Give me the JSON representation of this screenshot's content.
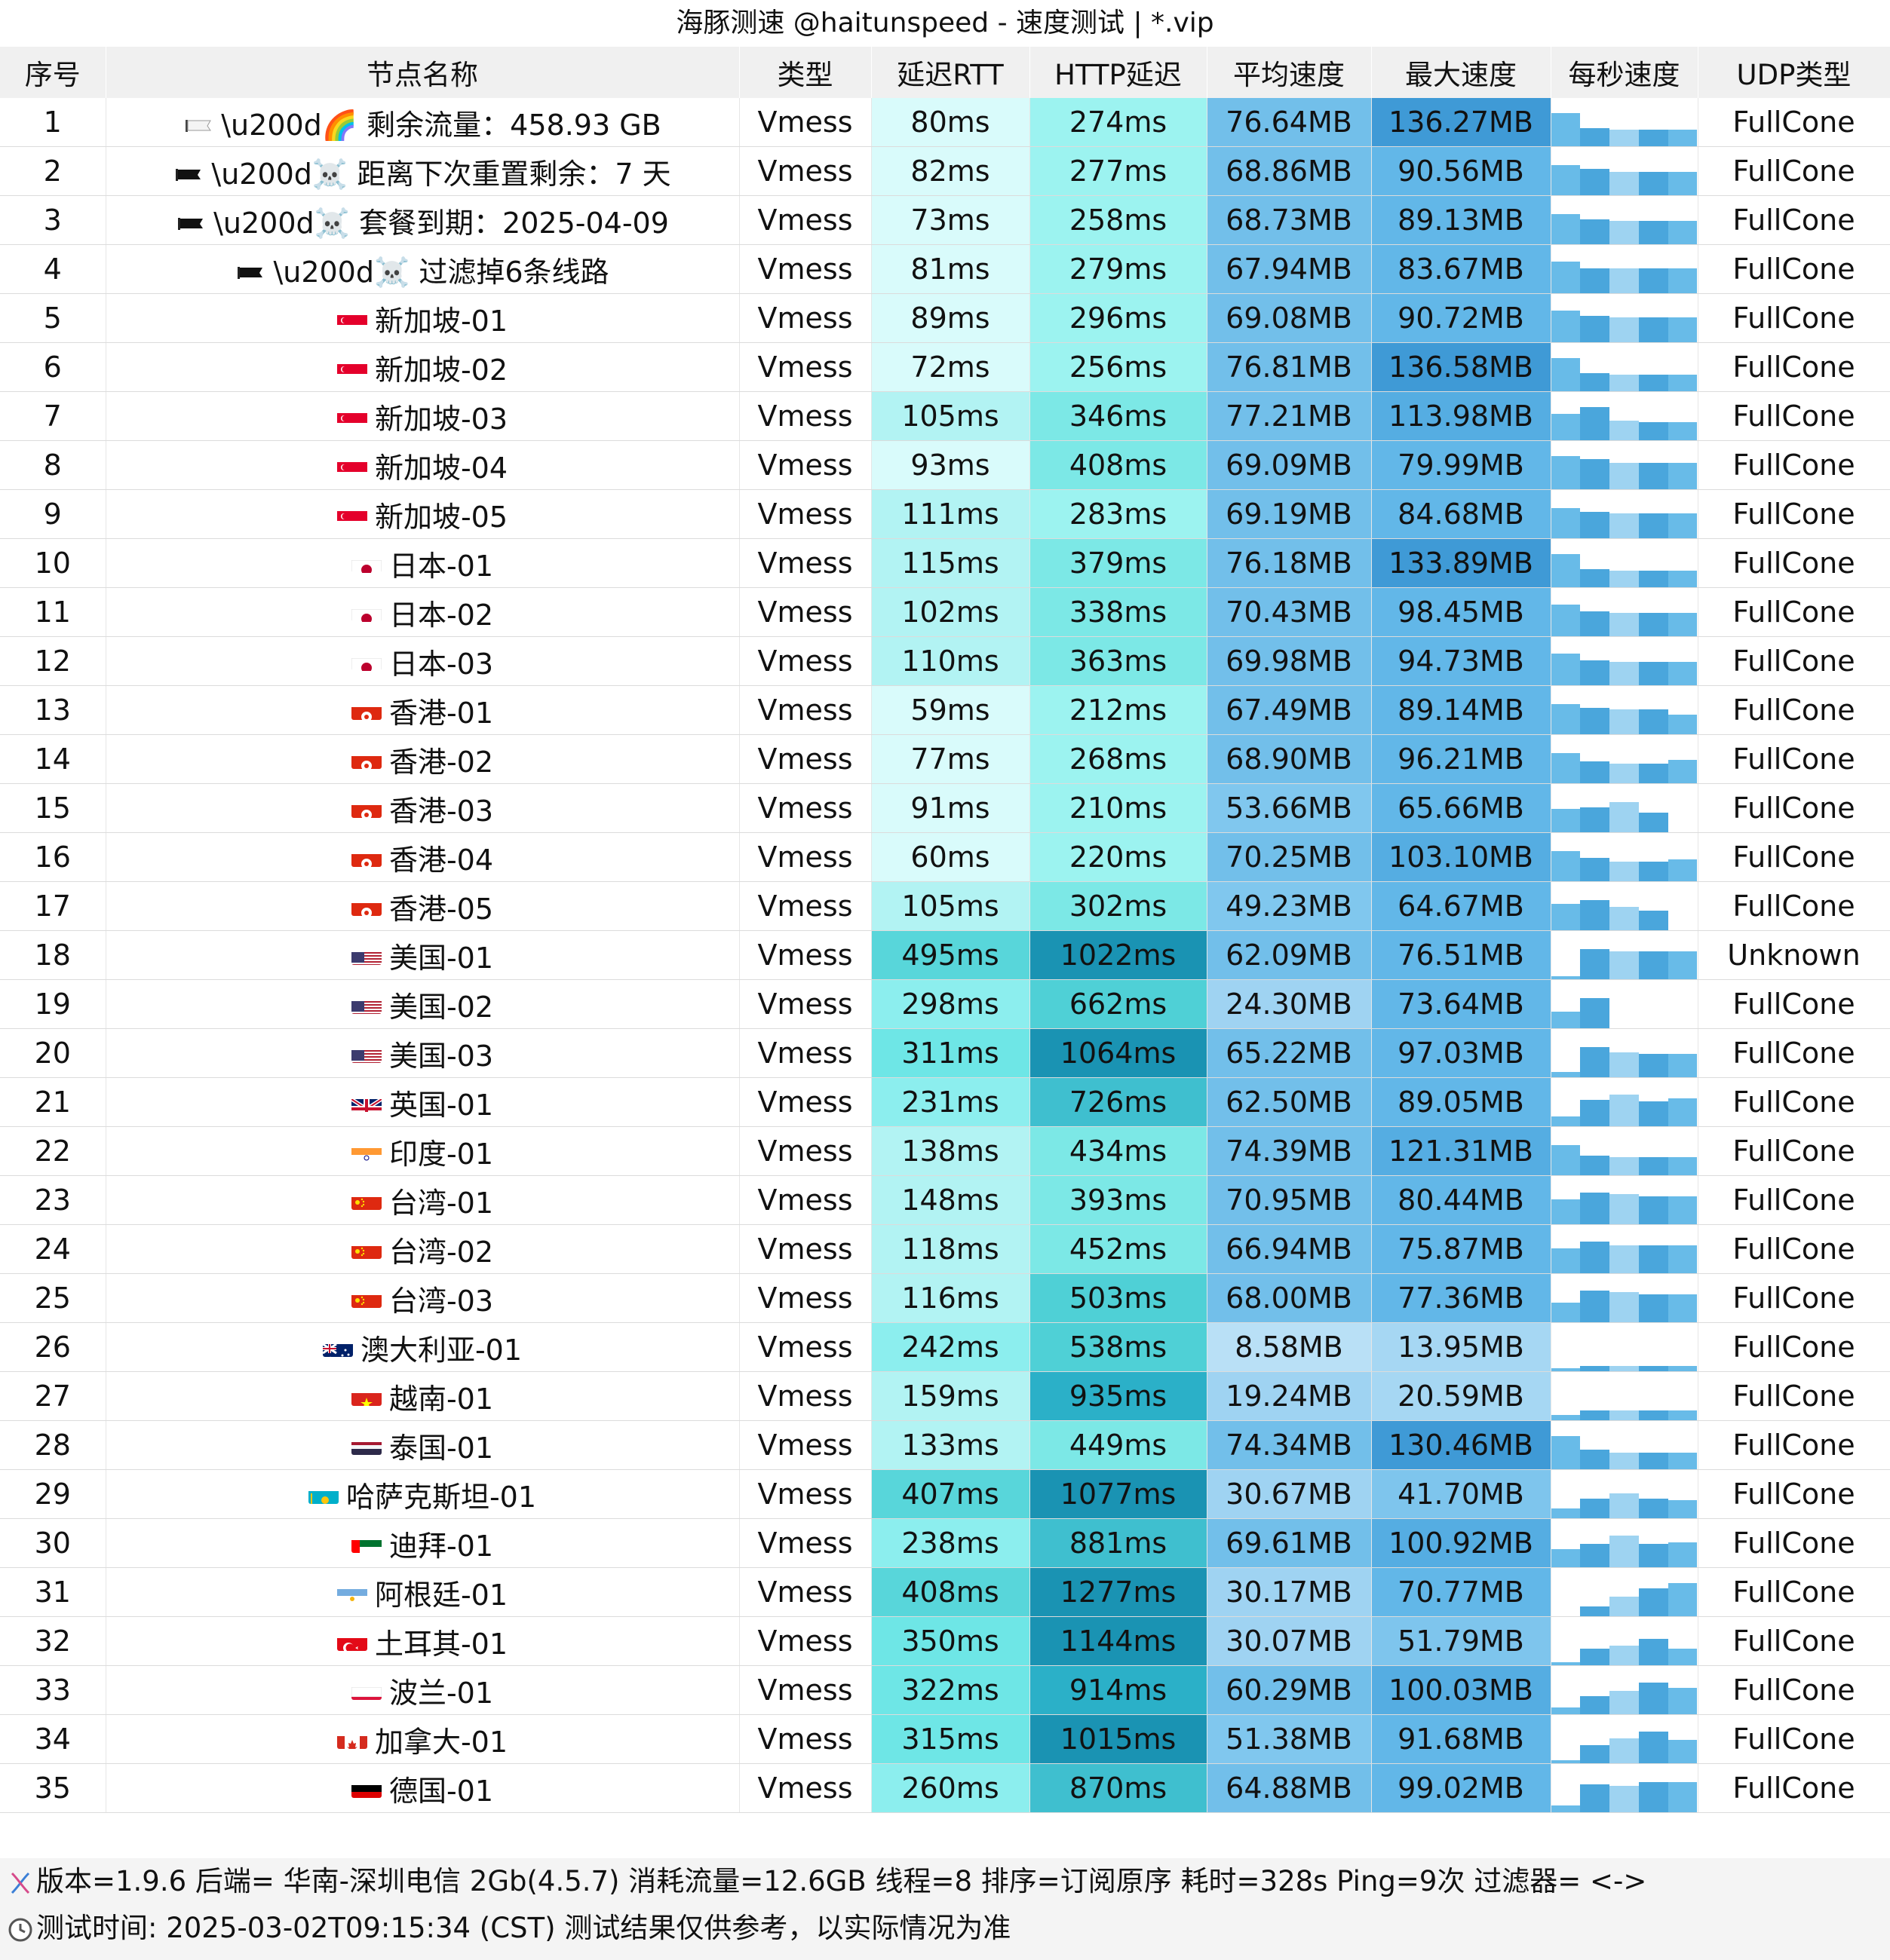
{
  "title": "海豚测速 @haitunspeed - 速度测试 | *.vip",
  "columns": [
    "序号",
    "节点名称",
    "类型",
    "延迟RTT",
    "HTTP延迟",
    "平均速度",
    "最大速度",
    "每秒速度",
    "UDP类型"
  ],
  "rows": [
    {
      "no": "1",
      "flag": "white-flag",
      "name": "\\u200d🌈 剩余流量：458.93 GB",
      "type": "Vmess",
      "rtt": "80ms",
      "http": "274ms",
      "avg": "76.64MB",
      "max": "136.27MB",
      "udp": "FullCone",
      "spark": [
        1.0,
        0.55,
        0.5,
        0.5,
        0.5
      ]
    },
    {
      "no": "2",
      "flag": "black-flag",
      "name": "\\u200d☠️ 距离下次重置剩余：7 天",
      "type": "Vmess",
      "rtt": "82ms",
      "http": "277ms",
      "avg": "68.86MB",
      "max": "90.56MB",
      "udp": "FullCone",
      "spark": [
        0.9,
        0.8,
        0.7,
        0.7,
        0.7
      ]
    },
    {
      "no": "3",
      "flag": "black-flag",
      "name": "\\u200d☠️ 套餐到期：2025-04-09",
      "type": "Vmess",
      "rtt": "73ms",
      "http": "258ms",
      "avg": "68.73MB",
      "max": "89.13MB",
      "udp": "FullCone",
      "spark": [
        0.9,
        0.75,
        0.7,
        0.7,
        0.7
      ]
    },
    {
      "no": "4",
      "flag": "black-flag",
      "name": "\\u200d☠️ 过滤掉6条线路",
      "type": "Vmess",
      "rtt": "81ms",
      "http": "279ms",
      "avg": "67.94MB",
      "max": "83.67MB",
      "udp": "FullCone",
      "spark": [
        0.95,
        0.75,
        0.75,
        0.75,
        0.75
      ]
    },
    {
      "no": "5",
      "flag": "sg",
      "name": "新加坡-01",
      "type": "Vmess",
      "rtt": "89ms",
      "http": "296ms",
      "avg": "69.08MB",
      "max": "90.72MB",
      "udp": "FullCone",
      "spark": [
        0.95,
        0.8,
        0.75,
        0.75,
        0.75
      ]
    },
    {
      "no": "6",
      "flag": "sg",
      "name": "新加坡-02",
      "type": "Vmess",
      "rtt": "72ms",
      "http": "256ms",
      "avg": "76.81MB",
      "max": "136.58MB",
      "udp": "FullCone",
      "spark": [
        1.0,
        0.55,
        0.5,
        0.5,
        0.5
      ]
    },
    {
      "no": "7",
      "flag": "sg",
      "name": "新加坡-03",
      "type": "Vmess",
      "rtt": "105ms",
      "http": "346ms",
      "avg": "77.21MB",
      "max": "113.98MB",
      "udp": "FullCone",
      "spark": [
        0.8,
        1.0,
        0.6,
        0.55,
        0.55
      ]
    },
    {
      "no": "8",
      "flag": "sg",
      "name": "新加坡-04",
      "type": "Vmess",
      "rtt": "93ms",
      "http": "408ms",
      "avg": "69.09MB",
      "max": "79.99MB",
      "udp": "FullCone",
      "spark": [
        1.0,
        0.9,
        0.8,
        0.8,
        0.8
      ]
    },
    {
      "no": "9",
      "flag": "sg",
      "name": "新加坡-05",
      "type": "Vmess",
      "rtt": "111ms",
      "http": "283ms",
      "avg": "69.19MB",
      "max": "84.68MB",
      "udp": "FullCone",
      "spark": [
        0.9,
        0.8,
        0.75,
        0.75,
        0.75
      ]
    },
    {
      "no": "10",
      "flag": "jp",
      "name": "日本-01",
      "type": "Vmess",
      "rtt": "115ms",
      "http": "379ms",
      "avg": "76.18MB",
      "max": "133.89MB",
      "udp": "FullCone",
      "spark": [
        1.0,
        0.55,
        0.5,
        0.5,
        0.5
      ]
    },
    {
      "no": "11",
      "flag": "jp",
      "name": "日本-02",
      "type": "Vmess",
      "rtt": "102ms",
      "http": "338ms",
      "avg": "70.43MB",
      "max": "98.45MB",
      "udp": "FullCone",
      "spark": [
        0.95,
        0.75,
        0.7,
        0.7,
        0.7
      ]
    },
    {
      "no": "12",
      "flag": "jp",
      "name": "日本-03",
      "type": "Vmess",
      "rtt": "110ms",
      "http": "363ms",
      "avg": "69.98MB",
      "max": "94.73MB",
      "udp": "FullCone",
      "spark": [
        0.95,
        0.75,
        0.7,
        0.7,
        0.7
      ]
    },
    {
      "no": "13",
      "flag": "hk",
      "name": "香港-01",
      "type": "Vmess",
      "rtt": "59ms",
      "http": "212ms",
      "avg": "67.49MB",
      "max": "89.14MB",
      "udp": "FullCone",
      "spark": [
        0.9,
        0.8,
        0.75,
        0.75,
        0.6
      ]
    },
    {
      "no": "14",
      "flag": "hk",
      "name": "香港-02",
      "type": "Vmess",
      "rtt": "77ms",
      "http": "268ms",
      "avg": "68.90MB",
      "max": "96.21MB",
      "udp": "FullCone",
      "spark": [
        0.9,
        0.65,
        0.6,
        0.6,
        0.7
      ]
    },
    {
      "no": "15",
      "flag": "hk",
      "name": "香港-03",
      "type": "Vmess",
      "rtt": "91ms",
      "http": "210ms",
      "avg": "53.66MB",
      "max": "65.66MB",
      "udp": "FullCone",
      "spark": [
        0.7,
        0.75,
        0.9,
        0.6,
        0.0
      ]
    },
    {
      "no": "16",
      "flag": "hk",
      "name": "香港-04",
      "type": "Vmess",
      "rtt": "60ms",
      "http": "220ms",
      "avg": "70.25MB",
      "max": "103.10MB",
      "udp": "FullCone",
      "spark": [
        0.9,
        0.7,
        0.6,
        0.6,
        0.65
      ]
    },
    {
      "no": "17",
      "flag": "hk",
      "name": "香港-05",
      "type": "Vmess",
      "rtt": "105ms",
      "http": "302ms",
      "avg": "49.23MB",
      "max": "64.67MB",
      "udp": "FullCone",
      "spark": [
        0.8,
        0.9,
        0.7,
        0.6,
        0.0
      ]
    },
    {
      "no": "18",
      "flag": "us",
      "name": "美国-01",
      "type": "Vmess",
      "rtt": "495ms",
      "http": "1022ms",
      "avg": "62.09MB",
      "max": "76.51MB",
      "udp": "Unknown",
      "spark": [
        0.1,
        0.9,
        0.85,
        0.85,
        0.85
      ]
    },
    {
      "no": "19",
      "flag": "us",
      "name": "美国-02",
      "type": "Vmess",
      "rtt": "298ms",
      "http": "662ms",
      "avg": "24.30MB",
      "max": "73.64MB",
      "udp": "FullCone",
      "spark": [
        0.5,
        0.9,
        0.0,
        0.0,
        0.0
      ]
    },
    {
      "no": "20",
      "flag": "us",
      "name": "美国-03",
      "type": "Vmess",
      "rtt": "311ms",
      "http": "1064ms",
      "avg": "65.22MB",
      "max": "97.03MB",
      "udp": "FullCone",
      "spark": [
        0.15,
        0.9,
        0.75,
        0.7,
        0.7
      ]
    },
    {
      "no": "21",
      "flag": "gb",
      "name": "英国-01",
      "type": "Vmess",
      "rtt": "231ms",
      "http": "726ms",
      "avg": "62.50MB",
      "max": "89.05MB",
      "udp": "FullCone",
      "spark": [
        0.3,
        0.8,
        0.95,
        0.75,
        0.85
      ]
    },
    {
      "no": "22",
      "flag": "in",
      "name": "印度-01",
      "type": "Vmess",
      "rtt": "138ms",
      "http": "434ms",
      "avg": "74.39MB",
      "max": "121.31MB",
      "udp": "FullCone",
      "spark": [
        0.9,
        0.6,
        0.55,
        0.55,
        0.55
      ]
    },
    {
      "no": "23",
      "flag": "tw",
      "name": "台湾-01",
      "type": "Vmess",
      "rtt": "148ms",
      "http": "393ms",
      "avg": "70.95MB",
      "max": "80.44MB",
      "udp": "FullCone",
      "spark": [
        0.75,
        0.95,
        0.9,
        0.85,
        0.85
      ]
    },
    {
      "no": "24",
      "flag": "tw",
      "name": "台湾-02",
      "type": "Vmess",
      "rtt": "118ms",
      "http": "452ms",
      "avg": "66.94MB",
      "max": "75.87MB",
      "udp": "FullCone",
      "spark": [
        0.75,
        0.95,
        0.85,
        0.85,
        0.85
      ]
    },
    {
      "no": "25",
      "flag": "tw",
      "name": "台湾-03",
      "type": "Vmess",
      "rtt": "116ms",
      "http": "503ms",
      "avg": "68.00MB",
      "max": "77.36MB",
      "udp": "FullCone",
      "spark": [
        0.6,
        0.95,
        0.9,
        0.85,
        0.85
      ]
    },
    {
      "no": "26",
      "flag": "au",
      "name": "澳大利亚-01",
      "type": "Vmess",
      "rtt": "242ms",
      "http": "538ms",
      "avg": "8.58MB",
      "max": "13.95MB",
      "udp": "FullCone",
      "spark": [
        0.1,
        0.15,
        0.15,
        0.15,
        0.15
      ]
    },
    {
      "no": "27",
      "flag": "vn",
      "name": "越南-01",
      "type": "Vmess",
      "rtt": "159ms",
      "http": "935ms",
      "avg": "19.24MB",
      "max": "20.59MB",
      "udp": "FullCone",
      "spark": [
        0.15,
        0.3,
        0.3,
        0.3,
        0.3
      ]
    },
    {
      "no": "28",
      "flag": "th",
      "name": "泰国-01",
      "type": "Vmess",
      "rtt": "133ms",
      "http": "449ms",
      "avg": "74.34MB",
      "max": "130.46MB",
      "udp": "FullCone",
      "spark": [
        1.0,
        0.6,
        0.5,
        0.5,
        0.5
      ]
    },
    {
      "no": "29",
      "flag": "kz",
      "name": "哈萨克斯坦-01",
      "type": "Vmess",
      "rtt": "407ms",
      "http": "1077ms",
      "avg": "30.67MB",
      "max": "41.70MB",
      "udp": "FullCone",
      "spark": [
        0.3,
        0.6,
        0.75,
        0.6,
        0.55
      ]
    },
    {
      "no": "30",
      "flag": "ae",
      "name": "迪拜-01",
      "type": "Vmess",
      "rtt": "238ms",
      "http": "881ms",
      "avg": "69.61MB",
      "max": "100.92MB",
      "udp": "FullCone",
      "spark": [
        0.55,
        0.7,
        0.95,
        0.7,
        0.75
      ]
    },
    {
      "no": "31",
      "flag": "ar",
      "name": "阿根廷-01",
      "type": "Vmess",
      "rtt": "408ms",
      "http": "1277ms",
      "avg": "30.17MB",
      "max": "70.77MB",
      "udp": "FullCone",
      "spark": [
        0.0,
        0.3,
        0.6,
        0.85,
        1.0
      ]
    },
    {
      "no": "32",
      "flag": "tr",
      "name": "土耳其-01",
      "type": "Vmess",
      "rtt": "350ms",
      "http": "1144ms",
      "avg": "30.07MB",
      "max": "51.79MB",
      "udp": "FullCone",
      "spark": [
        0.1,
        0.5,
        0.6,
        0.8,
        0.5
      ]
    },
    {
      "no": "33",
      "flag": "pl",
      "name": "波兰-01",
      "type": "Vmess",
      "rtt": "322ms",
      "http": "914ms",
      "avg": "60.29MB",
      "max": "100.03MB",
      "udp": "FullCone",
      "spark": [
        0.2,
        0.55,
        0.7,
        0.95,
        0.8
      ]
    },
    {
      "no": "34",
      "flag": "ca",
      "name": "加拿大-01",
      "type": "Vmess",
      "rtt": "315ms",
      "http": "1015ms",
      "avg": "51.38MB",
      "max": "91.68MB",
      "udp": "FullCone",
      "spark": [
        0.1,
        0.55,
        0.75,
        0.95,
        0.7
      ]
    },
    {
      "no": "35",
      "flag": "de",
      "name": "德国-01",
      "type": "Vmess",
      "rtt": "260ms",
      "http": "870ms",
      "avg": "64.88MB",
      "max": "99.02MB",
      "udp": "FullCone",
      "spark": [
        0.2,
        0.85,
        0.8,
        0.9,
        0.9
      ]
    }
  ],
  "footer": {
    "line1": "版本=1.9.6  后端=  华南-深圳电信 2Gb(4.5.7) 消耗流量=12.6GB  线程=8  排序=订阅原序  耗时=328s  Ping=9次  过滤器= <->",
    "line2": "测试时间: 2025-03-02T09:15:34 (CST)  测试结果仅供参考，以实际情况为准",
    "line1_icon": "dna-icon",
    "line1_sub_icon": "download-arrow-icon",
    "line2_icon": "clock-icon"
  },
  "colors": {
    "header_bg": "#f0f0f0",
    "footer_bg": "#f4f4f4",
    "spark_bar": "#68bbe8",
    "udp_bg": "#ffffff"
  }
}
